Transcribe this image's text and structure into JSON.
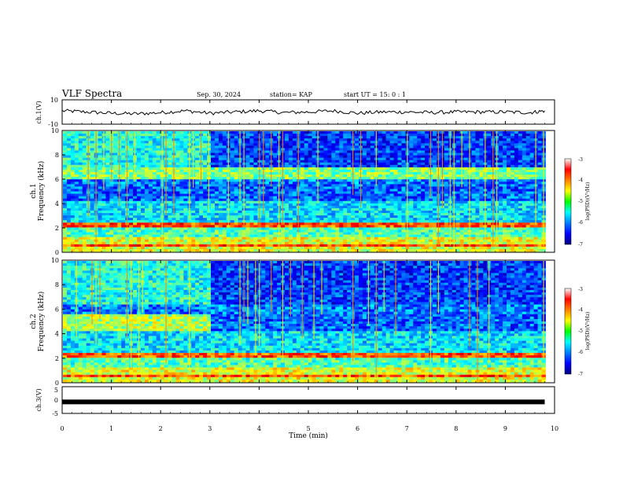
{
  "header": {
    "title": "VLF Spectra",
    "date": "Sep. 30, 2024",
    "station": "station= KAP",
    "start": "start  UT =   15: 0   : 1"
  },
  "chart_data": [
    {
      "type": "line",
      "panel": "ch1-waveform",
      "ylabel": "ch.1(V)",
      "ylim": [
        -10,
        10
      ],
      "yticks": [
        "10",
        "-10"
      ],
      "xlim": [
        0,
        10
      ],
      "note_series": "noisy waveform around 0 V, amplitude roughly 2-3 V, record ends near 9.8 min",
      "series": [
        {
          "x": [
            0,
            0.5,
            1,
            1.5,
            2,
            2.5,
            3,
            3.5,
            4,
            4.5,
            5,
            5.5,
            6,
            6.5,
            7,
            7.5,
            8,
            8.5,
            9,
            9.5,
            9.8
          ],
          "values": [
            1,
            0,
            -1,
            -1.5,
            -0.5,
            1,
            -1,
            0,
            1,
            -0.5,
            0,
            1,
            -1,
            0,
            0,
            -0.5,
            0,
            0,
            0,
            -0.5,
            1
          ]
        }
      ]
    },
    {
      "type": "heatmap",
      "panel": "ch1-spectrogram",
      "ylabel": "ch.1\nFrequency (kHz)",
      "ylabel_line1": "ch.1",
      "ylabel_line2": "Frequency (kHz)",
      "ylim": [
        0,
        10
      ],
      "yticks": [
        "0",
        "2",
        "4",
        "6",
        "8",
        "10"
      ],
      "xlim": [
        0,
        10
      ],
      "colorbar": {
        "label": "log(PSD)(V²/Hz)",
        "range": [
          -7,
          -3
        ],
        "ticks": [
          "-3",
          "-4",
          "-5",
          "-6",
          "-7"
        ],
        "colormap": "jet"
      }
    },
    {
      "type": "heatmap",
      "panel": "ch2-spectrogram",
      "ylabel_line1": "ch.2",
      "ylabel_line2": "Frequency (kHz)",
      "ylim": [
        0,
        10
      ],
      "yticks": [
        "0",
        "2",
        "4",
        "6",
        "8",
        "10"
      ],
      "xlim": [
        0,
        10
      ],
      "colorbar": {
        "label": "log(PSD)(V²/Hz)",
        "range": [
          -7,
          -3
        ],
        "ticks": [
          "-3",
          "-4",
          "-5",
          "-6",
          "-7"
        ],
        "colormap": "jet"
      }
    },
    {
      "type": "line",
      "panel": "ch3-waveform",
      "ylabel": "ch.3(V)",
      "ylim": [
        -5,
        5
      ],
      "yticks": [
        "5",
        "0",
        "-5"
      ],
      "xlim": [
        0,
        10
      ],
      "xlabel": "Time  (min)",
      "xticks": [
        "0",
        "1",
        "2",
        "3",
        "4",
        "5",
        "6",
        "7",
        "8",
        "9",
        "10"
      ],
      "series": [
        {
          "x": [
            0,
            9.8
          ],
          "values": [
            -0.7,
            -0.7
          ]
        }
      ]
    }
  ],
  "colors": {
    "background": "#ffffff",
    "axes": "#000000",
    "spec_low": "#0000aa",
    "spec_high": "#cc0000"
  }
}
